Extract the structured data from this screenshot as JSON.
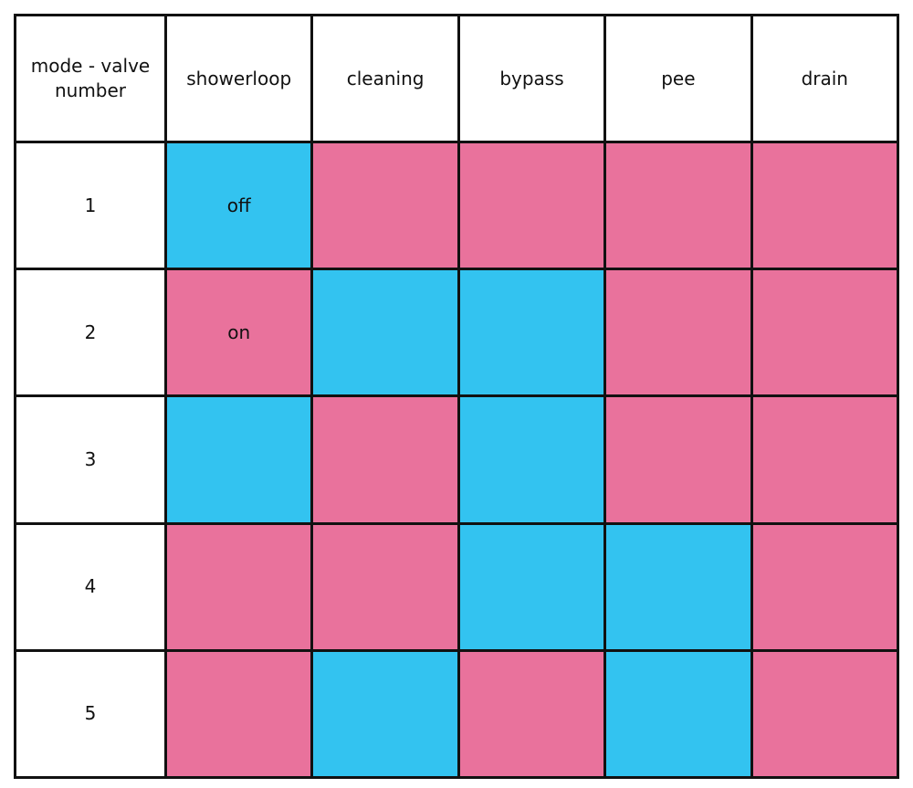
{
  "table": {
    "header": [
      "mode - valve number",
      "showerloop",
      "cleaning",
      "bypass",
      "pee",
      "drain"
    ],
    "rows": [
      {
        "label": "1",
        "cells": [
          {
            "color": "#33c3f0",
            "text": "off"
          },
          {
            "color": "#e9729c"
          },
          {
            "color": "#e9729c"
          },
          {
            "color": "#e9729c"
          },
          {
            "color": "#e9729c"
          }
        ]
      },
      {
        "label": "2",
        "cells": [
          {
            "color": "#e9729c",
            "text": "on"
          },
          {
            "color": "#33c3f0"
          },
          {
            "color": "#33c3f0"
          },
          {
            "color": "#e9729c"
          },
          {
            "color": "#e9729c"
          }
        ]
      },
      {
        "label": "3",
        "cells": [
          {
            "color": "#33c3f0"
          },
          {
            "color": "#e9729c"
          },
          {
            "color": "#33c3f0"
          },
          {
            "color": "#e9729c"
          },
          {
            "color": "#e9729c"
          }
        ]
      },
      {
        "label": "4",
        "cells": [
          {
            "color": "#e9729c"
          },
          {
            "color": "#e9729c"
          },
          {
            "color": "#33c3f0"
          },
          {
            "color": "#33c3f0"
          },
          {
            "color": "#e9729c"
          }
        ]
      },
      {
        "label": "5",
        "cells": [
          {
            "color": "#e9729c"
          },
          {
            "color": "#33c3f0"
          },
          {
            "color": "#e9729c"
          },
          {
            "color": "#33c3f0"
          },
          {
            "color": "#e9729c"
          }
        ]
      }
    ]
  }
}
